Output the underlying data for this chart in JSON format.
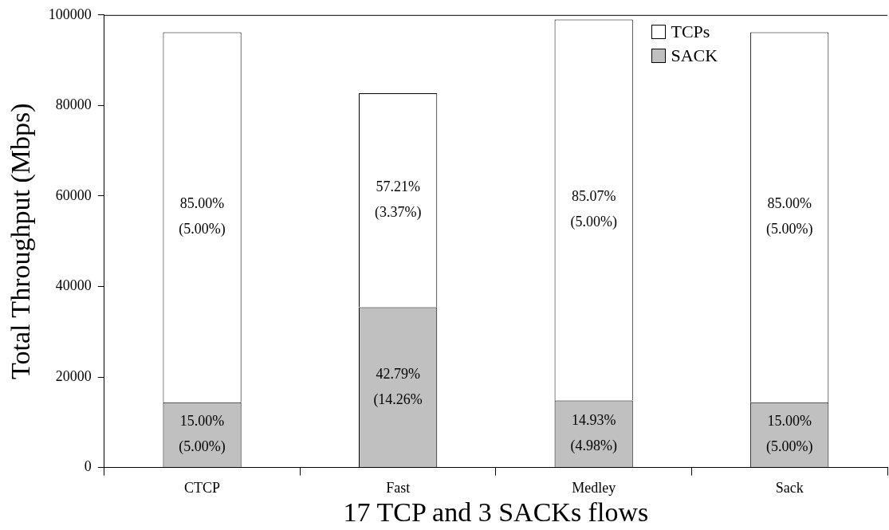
{
  "chart_data": {
    "type": "bar",
    "stacked": true,
    "xlabel": "17 TCP and 3 SACKs flows",
    "ylabel": "Total Throughput (Mbps)",
    "categories": [
      "CTCP",
      "Fast",
      "Medley",
      "Sack"
    ],
    "series": [
      {
        "name": "SACK",
        "color": "#c0c0c0",
        "values": [
          14400,
          35400,
          14800,
          14400
        ]
      },
      {
        "name": "TCPs",
        "color": "#ffffff",
        "values": [
          81800,
          47300,
          84200,
          81800
        ]
      }
    ],
    "annotations": [
      "15.00%\n(5.00%)",
      "85.00%\n(5.00%)",
      "42.79%\n(14.26%",
      "57.21%\n(3.37%)",
      "14.93%\n(4.98%)",
      "85.07%\n(5.00%)",
      "15.00%\n(5.00%)",
      "85.00%\n(5.00%)"
    ],
    "ylim": [
      0,
      100000
    ],
    "yticks": [
      0,
      20000,
      40000,
      60000,
      80000,
      100000
    ],
    "grid": false,
    "legend": "top right"
  }
}
